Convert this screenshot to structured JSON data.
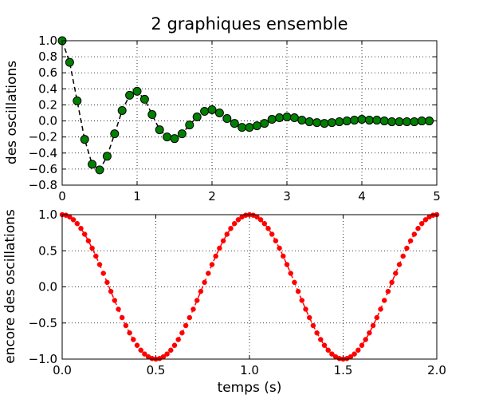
{
  "title": "2 graphiques ensemble",
  "chart_data": [
    {
      "type": "line",
      "xlabel": "",
      "ylabel": "des oscillations",
      "xlim": [
        0,
        5
      ],
      "ylim": [
        -0.8,
        1.0
      ],
      "x_ticks": [
        "0",
        "1",
        "2",
        "3",
        "4",
        "5"
      ],
      "y_ticks": [
        "1.0",
        "0.8",
        "0.6",
        "0.4",
        "0.2",
        "0.0",
        "−0.2",
        "−0.4",
        "−0.6",
        "−0.8"
      ],
      "grid": true,
      "series": [
        {
          "line_style": "dashed",
          "line_color": "#000000",
          "marker": "circle",
          "marker_color": "#008000",
          "x": [
            0.0,
            0.1,
            0.2,
            0.3,
            0.4,
            0.5,
            0.6,
            0.7,
            0.8,
            0.9,
            1.0,
            1.1,
            1.2,
            1.3,
            1.4,
            1.5,
            1.6,
            1.7,
            1.8,
            1.9,
            2.0,
            2.1,
            2.2,
            2.3,
            2.4,
            2.5,
            2.6,
            2.7,
            2.8,
            2.9,
            3.0,
            3.1,
            3.2,
            3.3,
            3.4,
            3.5,
            3.6,
            3.7,
            3.8,
            3.9,
            4.0,
            4.1,
            4.2,
            4.3,
            4.4,
            4.5,
            4.6,
            4.7,
            4.8,
            4.9
          ],
          "y": [
            1.0,
            0.73,
            0.25,
            -0.23,
            -0.54,
            -0.61,
            -0.44,
            -0.16,
            0.13,
            0.32,
            0.37,
            0.27,
            0.08,
            -0.11,
            -0.2,
            -0.22,
            -0.16,
            -0.05,
            0.05,
            0.12,
            0.14,
            0.1,
            0.03,
            -0.03,
            -0.08,
            -0.08,
            -0.06,
            -0.03,
            0.02,
            0.04,
            0.05,
            0.04,
            0.01,
            -0.01,
            -0.02,
            -0.03,
            -0.02,
            -0.01,
            0.0,
            0.01,
            0.02,
            0.01,
            0.01,
            0.0,
            -0.01,
            -0.01,
            -0.01,
            -0.01,
            0.0,
            0.0
          ]
        }
      ]
    },
    {
      "type": "line",
      "xlabel": "temps (s)",
      "ylabel": "encore des oscillations",
      "xlim": [
        0.0,
        2.0
      ],
      "ylim": [
        -1.0,
        1.0
      ],
      "x_ticks": [
        "0.0",
        "0.5",
        "1.0",
        "1.5",
        "2.0"
      ],
      "y_ticks": [
        "1.0",
        "0.5",
        "0.0",
        "−0.5",
        "−1.0"
      ],
      "grid": true,
      "series": [
        {
          "function": "cos(2πt)",
          "x_range": [
            0.0,
            2.0
          ],
          "sample_count": 101,
          "line_style": "dashed",
          "line_color": "#ff0000",
          "marker": "circle",
          "marker_color": "#ff0000"
        }
      ]
    }
  ]
}
